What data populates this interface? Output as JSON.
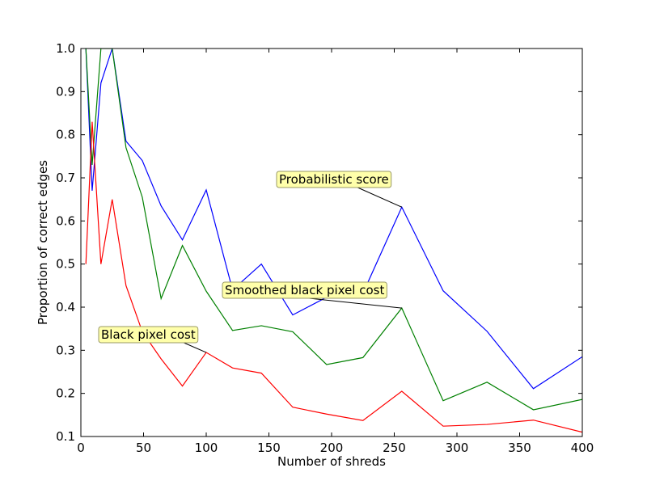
{
  "chart_data": {
    "type": "line",
    "title": "",
    "xlabel": "Number of shreds",
    "ylabel": "Proportion of correct edges",
    "xlim": [
      0,
      400
    ],
    "ylim": [
      0.1,
      1.0
    ],
    "xticks": [
      0,
      50,
      100,
      150,
      200,
      250,
      300,
      350,
      400
    ],
    "yticks": [
      0.1,
      0.2,
      0.3,
      0.4,
      0.5,
      0.6,
      0.7,
      0.8,
      0.9,
      1.0
    ],
    "xtick_labels": [
      "0",
      "50",
      "100",
      "150",
      "200",
      "250",
      "300",
      "350",
      "400"
    ],
    "ytick_labels": [
      "0.1",
      "0.2",
      "0.3",
      "0.4",
      "0.5",
      "0.6",
      "0.7",
      "0.8",
      "0.9",
      "1.0"
    ],
    "grid": false,
    "series": [
      {
        "name": "Probabilistic score",
        "color": "#0000ff",
        "x": [
          4,
          9,
          16,
          25,
          36,
          49,
          64,
          81,
          100,
          121,
          144,
          169,
          196,
          225,
          256,
          289,
          324,
          361,
          400
        ],
        "y": [
          1.0,
          0.67,
          0.92,
          1.0,
          0.785,
          0.74,
          0.635,
          0.556,
          0.672,
          0.44,
          0.5,
          0.382,
          0.423,
          0.432,
          0.632,
          0.438,
          0.344,
          0.211,
          0.285
        ]
      },
      {
        "name": "Smoothed black pixel cost",
        "color": "#008000",
        "x": [
          4,
          9,
          16,
          25,
          36,
          49,
          64,
          81,
          100,
          121,
          144,
          169,
          196,
          225,
          256,
          289,
          324,
          361,
          400
        ],
        "y": [
          1.0,
          0.73,
          1.0,
          1.0,
          0.77,
          0.655,
          0.42,
          0.543,
          0.437,
          0.346,
          0.357,
          0.343,
          0.267,
          0.283,
          0.398,
          0.183,
          0.226,
          0.162,
          0.186
        ]
      },
      {
        "name": "Black pixel cost",
        "color": "#ff0000",
        "x": [
          4,
          9,
          16,
          25,
          36,
          49,
          64,
          81,
          100,
          121,
          144,
          169,
          196,
          225,
          256,
          289,
          324,
          361,
          400
        ],
        "y": [
          0.5,
          0.83,
          0.5,
          0.65,
          0.45,
          0.343,
          0.28,
          0.217,
          0.295,
          0.259,
          0.247,
          0.168,
          0.152,
          0.137,
          0.205,
          0.124,
          0.128,
          0.138,
          0.11
        ]
      }
    ],
    "annotations": [
      {
        "text": "Probabilistic score",
        "series": 0,
        "point_x": 256,
        "point_y": 0.632
      },
      {
        "text": "Smoothed black pixel cost",
        "series": 1,
        "point_x": 256,
        "point_y": 0.398
      },
      {
        "text": "Black pixel cost",
        "series": 2,
        "point_x": 100,
        "point_y": 0.295
      }
    ],
    "annotation_style": {
      "box_fill": "#ffffaa",
      "box_stroke": "#999966"
    }
  }
}
